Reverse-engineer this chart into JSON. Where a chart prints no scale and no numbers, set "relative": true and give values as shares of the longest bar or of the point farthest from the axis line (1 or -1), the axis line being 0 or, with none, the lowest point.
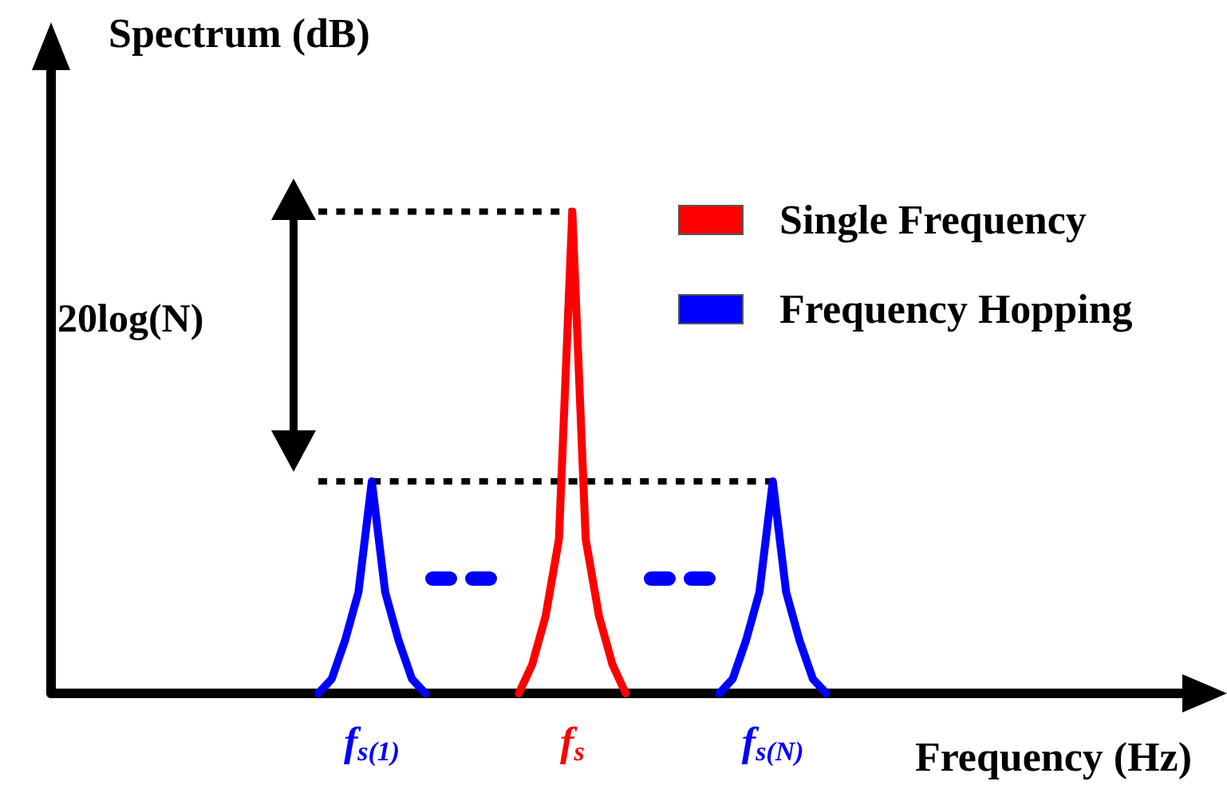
{
  "chart_data": {
    "type": "line",
    "relative": true,
    "ylabel": "Spectrum (dB)",
    "xlabel": "Frequency (Hz)",
    "legend": "top right",
    "grid": false,
    "marker": "none",
    "line_style": "solid",
    "annotations": [
      "20log(N)"
    ],
    "categories": [
      null,
      null,
      null,
      null,
      null,
      null,
      null,
      null,
      null,
      null,
      null,
      null,
      null,
      null,
      null,
      null,
      null,
      null,
      null,
      null,
      null,
      null,
      null,
      null,
      "f$_{s(1)}$",
      null,
      null,
      null,
      null,
      null,
      null,
      null,
      null,
      null,
      null,
      null,
      null,
      null,
      null,
      "f$_{s}$",
      null,
      null,
      null,
      null,
      null,
      null,
      null,
      null,
      null,
      null,
      null,
      null,
      null,
      null,
      "f$_{s(N)}$",
      null,
      null,
      null,
      null,
      null,
      null,
      null,
      null,
      null,
      null,
      null,
      null,
      null,
      null,
      null,
      null,
      null,
      null,
      null,
      null,
      null,
      null,
      null,
      null,
      null,
      null,
      null,
      null,
      null,
      null,
      null
    ],
    "series": [
      {
        "name": "Single Frequency",
        "color": "#ff0000",
        "values": [
          null,
          null,
          null,
          null,
          null,
          null,
          null,
          null,
          null,
          null,
          null,
          null,
          null,
          null,
          null,
          null,
          null,
          null,
          null,
          null,
          null,
          null,
          null,
          null,
          null,
          null,
          null,
          null,
          null,
          null,
          null,
          null,
          null,
          null,
          null,
          0,
          0.06,
          0.16,
          0.32,
          1,
          0.32,
          0.16,
          0.06,
          0,
          null,
          null,
          null,
          null,
          null,
          null,
          null,
          null,
          null,
          null,
          null,
          null,
          null,
          null,
          null,
          null,
          null,
          null,
          null,
          null,
          null,
          null,
          null,
          null,
          null,
          null,
          null,
          null,
          null,
          null,
          null,
          null,
          null,
          null,
          null,
          null,
          null,
          null,
          null,
          null,
          null,
          null
        ]
      },
      {
        "name": "Frequency Hopping",
        "color": "#0000ff",
        "values": [
          null,
          null,
          null,
          null,
          null,
          null,
          null,
          null,
          null,
          null,
          null,
          null,
          null,
          null,
          null,
          null,
          null,
          null,
          null,
          null,
          0,
          0.03,
          0.11,
          0.21,
          0.44,
          0.21,
          0.11,
          0.03,
          0,
          null,
          null,
          null,
          null,
          null,
          null,
          null,
          null,
          null,
          null,
          null,
          null,
          null,
          null,
          null,
          null,
          null,
          null,
          null,
          null,
          null,
          0,
          0.03,
          0.11,
          0.21,
          0.44,
          0.21,
          0.11,
          0.03,
          0,
          null,
          null,
          null,
          null,
          null,
          null,
          null,
          null,
          null,
          null,
          null,
          null,
          null,
          null,
          null,
          null,
          null,
          null,
          null,
          null,
          null,
          null,
          null,
          null,
          null,
          null,
          null
        ]
      },
      {
        "color": "#000000",
        "line_style": "dashed",
        "values": [
          null,
          null,
          null,
          null,
          null,
          null,
          null,
          null,
          null,
          null,
          null,
          null,
          null,
          null,
          null,
          null,
          null,
          null,
          null,
          null,
          1,
          1,
          1,
          1,
          1,
          1,
          1,
          1,
          1,
          1,
          1,
          1,
          1,
          1,
          1,
          1,
          1,
          1,
          1,
          1,
          null,
          null,
          null,
          null,
          null,
          null,
          null,
          null,
          null,
          null,
          null,
          null,
          null,
          null,
          null,
          null,
          null,
          null,
          null,
          null,
          null,
          null,
          null,
          null,
          null,
          null,
          null,
          null,
          null,
          null,
          null,
          null,
          null,
          null,
          null,
          null,
          null,
          null,
          null,
          null,
          null,
          null,
          null,
          null,
          null,
          null
        ]
      },
      {
        "color": "#000000",
        "line_style": "dashed",
        "values": [
          null,
          null,
          null,
          null,
          null,
          null,
          null,
          null,
          null,
          null,
          null,
          null,
          null,
          null,
          null,
          null,
          null,
          null,
          null,
          null,
          0.44,
          0.44,
          0.44,
          0.44,
          0.44,
          0.44,
          0.44,
          0.44,
          0.44,
          0.44,
          0.44,
          0.44,
          0.44,
          0.44,
          0.44,
          0.44,
          0.44,
          0.44,
          0.44,
          0.44,
          0.44,
          0.44,
          0.44,
          0.44,
          0.44,
          0.44,
          0.44,
          0.44,
          0.44,
          0.44,
          0.44,
          0.44,
          0.44,
          0.44,
          0.44,
          null,
          null,
          null,
          null,
          null,
          null,
          null,
          null,
          null,
          null,
          null,
          null,
          null,
          null,
          null,
          null,
          null,
          null,
          null,
          null,
          null,
          null,
          null,
          null,
          null,
          null,
          null,
          null,
          null,
          null,
          null
        ]
      }
    ]
  }
}
